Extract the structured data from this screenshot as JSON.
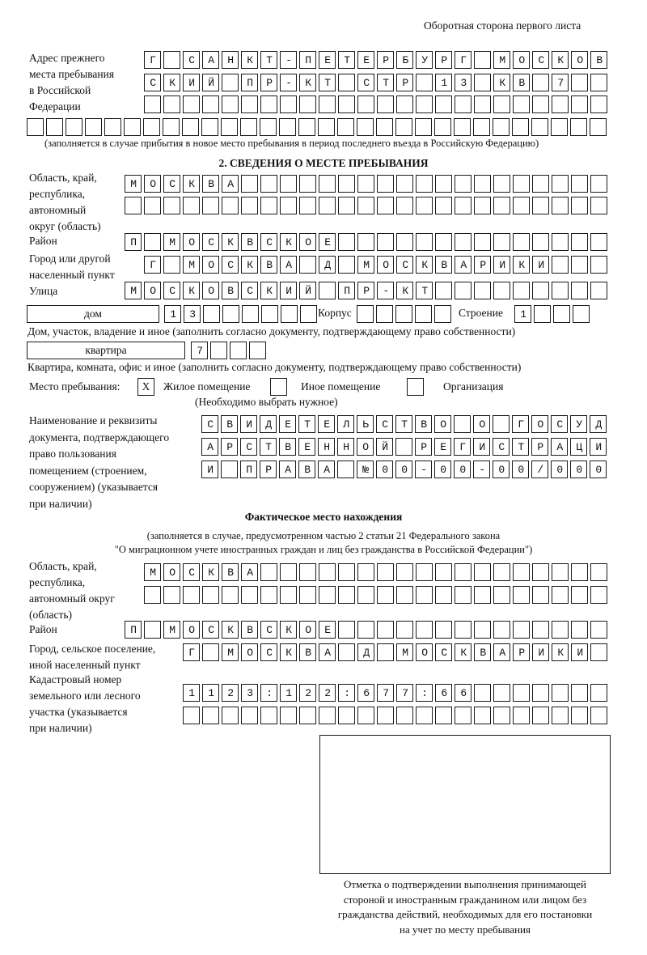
{
  "page_header": "Оборотная сторона первого листа",
  "previous_address": {
    "label": [
      "Адрес прежнего",
      "места пребывания",
      "в Российской",
      "Федерации"
    ],
    "rows": [
      "Г САНКТ-ПЕТЕРБУРГ МОСКОВ",
      "СКИЙ ПР-КТ СТР 13 КВ 7",
      "",
      ""
    ],
    "note": "(заполняется в случае прибытия в новое место пребывания в период последнего въезда в Российскую Федерацию)"
  },
  "section2": {
    "title": "2. СВЕДЕНИЯ О МЕСТЕ ПРЕБЫВАНИЯ",
    "region_label": [
      "Область, край,",
      "республика,",
      "автономный",
      "округ (область)"
    ],
    "region_rows": [
      "МОСКВА",
      ""
    ],
    "district_label": "Район",
    "district": "П МОСКВСКОЕ",
    "city_label": [
      "Город или другой",
      "населенный пункт"
    ],
    "city": "Г МОСКВА Д МОСКВАРИКИ",
    "street_label": "Улица",
    "street": "МОСКОВСКИЙ ПР-КТ",
    "house_type": "дом",
    "house": "13",
    "korpus_label": "Корпус",
    "korpus": "",
    "building_label": "Строение",
    "building": "1",
    "house_note": "Дом, участок, владение и иное (заполнить согласно документу, подтверждающему право собственности)",
    "apartment_type": "квартира",
    "apartment": "7",
    "apartment_note": "Квартира, комната, офис и иное (заполнить согласно документу, подтверждающему право собственности)",
    "stay_place_label": "Место пребывания:",
    "stay_options": [
      {
        "label": "Жилое помещение",
        "mark": "X"
      },
      {
        "label": "Иное помещение",
        "mark": ""
      },
      {
        "label": "Организация",
        "mark": ""
      }
    ],
    "stay_note": "(Необходимо выбрать нужное)",
    "document_label": [
      "Наименование и реквизиты",
      "документа, подтверждающего",
      "право пользования",
      "помещением (строением,",
      "сооружением) (указывается",
      "при наличии)"
    ],
    "document_rows": [
      "СВИДЕТЕЛЬСТВО О ГОСУД",
      "АРСТВЕННОЙ РЕГИСТРАЦИ",
      "И ПРАВА №00-00-00/000"
    ]
  },
  "actual_location": {
    "title": "Фактическое место нахождения",
    "note_1": "(заполняется в случае, предусмотренном частью 2 статьи 21 Федерального закона",
    "note_2": "\"О миграционном учете иностранных граждан и лиц без гражданства в Российской Федерации\")",
    "region_label": [
      "Область, край,",
      "республика,",
      "автономный округ",
      "(область)"
    ],
    "region_rows": [
      "МОСКВА",
      ""
    ],
    "district_label": "Район",
    "district": "П МОСКВСКОЕ",
    "city_label": [
      "Город, сельское поселение,",
      "иной населенный пункт"
    ],
    "city": "Г МОСКВА Д МОСКВАРИКИ",
    "cadastral_label": [
      "Кадастровый номер",
      "земельного или лесного",
      "участка (указывается",
      "при наличии)"
    ],
    "cadastral_rows": [
      "1123:122:677:66",
      ""
    ]
  },
  "confirmation": {
    "caption": [
      "Отметка о подтверждении выполнения принимающей",
      "стороной и иностранным гражданином или лицом без",
      "гражданства действий, необходимых для его постановки",
      "на учет по месту пребывания"
    ]
  }
}
